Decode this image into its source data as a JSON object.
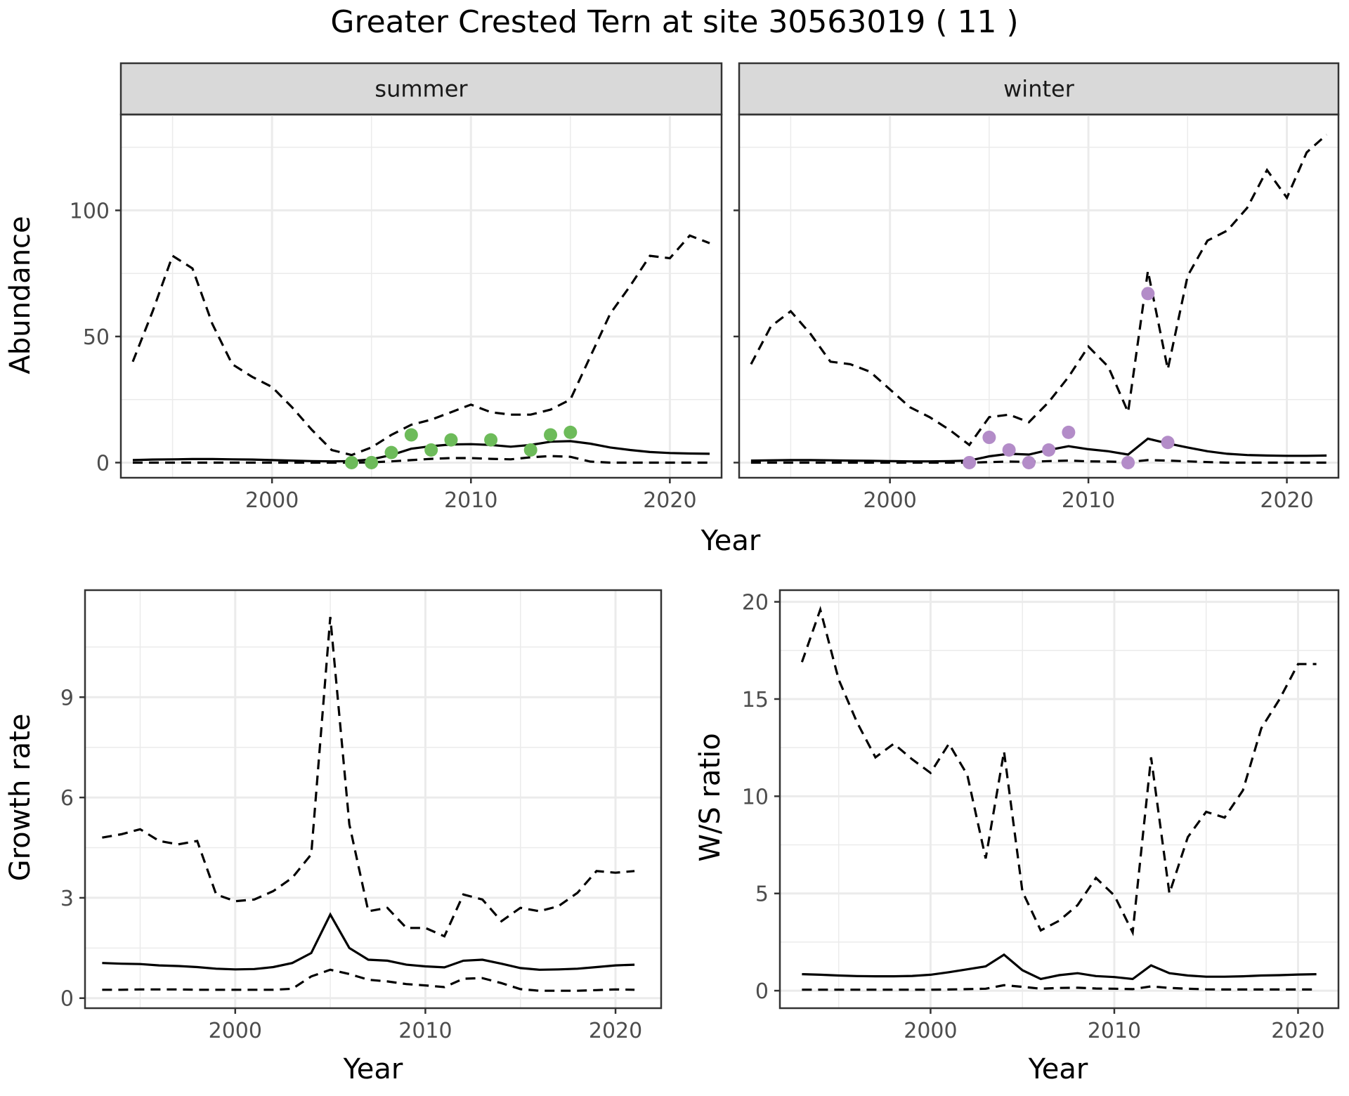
{
  "figure": {
    "title": "Greater Crested Tern at site 30563019 ( 11 )"
  },
  "colors": {
    "summer_points": "#6dbb5a",
    "winter_points": "#b38cc8",
    "line": "#000000",
    "strip_fill": "#d9d9d9",
    "grid": "#ebebeb"
  },
  "chart_data": [
    {
      "type": "line",
      "panel": "abundance",
      "ylabel": "Abundance",
      "xlabel": "Year",
      "xlim": [
        1992.4,
        2022.6
      ],
      "ylim": [
        -6,
        138
      ],
      "x_ticks": [
        2000,
        2010,
        2020
      ],
      "y_ticks": [
        0,
        50,
        100
      ],
      "grid": true,
      "facets": [
        {
          "strip": "summer",
          "point_color": "#6dbb5a",
          "estimate": {
            "x": [
              1993,
              1994,
              1995,
              1996,
              1997,
              1998,
              1999,
              2000,
              2001,
              2002,
              2003,
              2004,
              2005,
              2006,
              2007,
              2008,
              2009,
              2010,
              2011,
              2012,
              2013,
              2014,
              2015,
              2016,
              2017,
              2018,
              2019,
              2020,
              2021,
              2022
            ],
            "y": [
              1,
              1.2,
              1.3,
              1.4,
              1.4,
              1.3,
              1.2,
              1,
              0.8,
              0.6,
              0.5,
              0.6,
              1.3,
              3,
              5.5,
              6.5,
              7.2,
              7.3,
              7,
              6.3,
              7,
              8.3,
              8.5,
              7.5,
              6,
              5,
              4.2,
              3.8,
              3.6,
              3.5
            ]
          },
          "upper": {
            "x": [
              1993,
              1994,
              1995,
              1996,
              1997,
              1998,
              1999,
              2000,
              2001,
              2002,
              2003,
              2004,
              2005,
              2006,
              2007,
              2008,
              2009,
              2010,
              2011,
              2012,
              2013,
              2014,
              2015,
              2016,
              2017,
              2018,
              2019,
              2020,
              2021,
              2022
            ],
            "y": [
              40,
              60,
              82,
              77,
              55,
              39,
              34,
              30,
              22,
              13,
              5,
              3,
              6,
              11,
              15,
              17,
              20,
              23,
              20,
              19,
              19,
              21,
              25,
              42,
              59,
              70,
              82,
              81,
              90,
              87
            ]
          },
          "lower": {
            "x": [
              1993,
              1994,
              1995,
              1996,
              1997,
              1998,
              1999,
              2000,
              2001,
              2002,
              2003,
              2004,
              2005,
              2006,
              2007,
              2008,
              2009,
              2010,
              2011,
              2012,
              2013,
              2014,
              2015,
              2016,
              2017,
              2018,
              2019,
              2020,
              2021,
              2022
            ],
            "y": [
              0,
              0,
              0,
              0,
              0,
              0,
              0,
              0,
              0,
              0,
              0,
              0,
              0.1,
              0.5,
              1,
              1.5,
              1.8,
              1.8,
              1.5,
              1.3,
              2.1,
              2.6,
              2.3,
              0.4,
              0,
              0,
              0,
              0,
              0,
              0
            ]
          },
          "observations": {
            "x": [
              2004,
              2005,
              2006,
              2007,
              2008,
              2009,
              2011,
              2013,
              2014,
              2015
            ],
            "y": [
              0,
              0,
              4,
              11,
              5,
              9,
              9,
              5,
              11,
              12
            ]
          }
        },
        {
          "strip": "winter",
          "point_color": "#b38cc8",
          "estimate": {
            "x": [
              1993,
              1994,
              1995,
              1996,
              1997,
              1998,
              1999,
              2000,
              2001,
              2002,
              2003,
              2004,
              2005,
              2006,
              2007,
              2008,
              2009,
              2010,
              2011,
              2012,
              2013,
              2014,
              2015,
              2016,
              2017,
              2018,
              2019,
              2020,
              2021,
              2022
            ],
            "y": [
              0.8,
              0.9,
              1,
              1,
              0.9,
              0.8,
              0.7,
              0.6,
              0.5,
              0.5,
              0.6,
              0.8,
              2.5,
              3.5,
              3.2,
              5,
              6.5,
              5.3,
              4.5,
              3.2,
              9.5,
              7.6,
              6,
              4.5,
              3.5,
              3,
              2.8,
              2.7,
              2.7,
              2.8
            ]
          },
          "upper": {
            "x": [
              1993,
              1994,
              1995,
              1996,
              1997,
              1998,
              1999,
              2000,
              2001,
              2002,
              2003,
              2004,
              2005,
              2006,
              2007,
              2008,
              2009,
              2010,
              2011,
              2012,
              2013,
              2014,
              2015,
              2016,
              2017,
              2018,
              2019,
              2020,
              2021,
              2022
            ],
            "y": [
              39,
              54,
              60,
              51,
              40,
              39,
              36,
              29,
              22,
              18,
              13,
              7,
              18,
              19,
              16,
              24,
              34,
              46,
              38,
              20,
              76,
              37,
              74,
              88,
              92,
              101,
              116,
              105,
              123,
              130
            ]
          },
          "lower": {
            "x": [
              1993,
              1994,
              1995,
              1996,
              1997,
              1998,
              1999,
              2000,
              2001,
              2002,
              2003,
              2004,
              2005,
              2006,
              2007,
              2008,
              2009,
              2010,
              2011,
              2012,
              2013,
              2014,
              2015,
              2016,
              2017,
              2018,
              2019,
              2020,
              2021,
              2022
            ],
            "y": [
              0,
              0,
              0,
              0,
              0,
              0,
              0,
              0,
              0,
              0,
              0,
              0,
              0.2,
              0.4,
              0.3,
              0.6,
              0.8,
              0.5,
              0.4,
              0.2,
              1,
              0.8,
              0.5,
              0.2,
              0,
              0,
              0,
              0,
              0,
              0
            ]
          },
          "observations": {
            "x": [
              2004,
              2005,
              2006,
              2007,
              2008,
              2009,
              2012,
              2013,
              2014
            ],
            "y": [
              0,
              10,
              5,
              0,
              5,
              12,
              0,
              67,
              8
            ]
          }
        }
      ]
    },
    {
      "type": "line",
      "panel": "growth",
      "ylabel": "Growth rate",
      "xlabel": "Year",
      "xlim": [
        1992.1,
        2022.4
      ],
      "ylim": [
        -0.3,
        12.2
      ],
      "x_ticks": [
        2000,
        2010,
        2020
      ],
      "y_ticks": [
        0,
        3,
        6,
        9
      ],
      "grid": true,
      "estimate": {
        "x": [
          1993,
          1994,
          1995,
          1996,
          1997,
          1998,
          1999,
          2000,
          2001,
          2002,
          2003,
          2004,
          2005,
          2006,
          2007,
          2008,
          2009,
          2010,
          2011,
          2012,
          2013,
          2014,
          2015,
          2016,
          2017,
          2018,
          2019,
          2020,
          2021
        ],
        "y": [
          1.05,
          1.03,
          1.02,
          0.98,
          0.96,
          0.93,
          0.88,
          0.86,
          0.87,
          0.93,
          1.05,
          1.35,
          2.5,
          1.5,
          1.15,
          1.12,
          1,
          0.95,
          0.92,
          1.12,
          1.15,
          1.03,
          0.9,
          0.85,
          0.86,
          0.88,
          0.93,
          0.98,
          1
        ]
      },
      "upper": {
        "x": [
          1993,
          1994,
          1995,
          1996,
          1997,
          1998,
          1999,
          2000,
          2001,
          2002,
          2003,
          2004,
          2005,
          2006,
          2007,
          2008,
          2009,
          2010,
          2011,
          2012,
          2013,
          2014,
          2015,
          2016,
          2017,
          2018,
          2019,
          2020,
          2021
        ],
        "y": [
          4.8,
          4.9,
          5.05,
          4.7,
          4.6,
          4.7,
          3.1,
          2.9,
          2.95,
          3.2,
          3.6,
          4.3,
          11.4,
          5.2,
          2.6,
          2.7,
          2.1,
          2.1,
          1.85,
          3.1,
          2.95,
          2.3,
          2.7,
          2.6,
          2.75,
          3.15,
          3.8,
          3.75,
          3.8
        ]
      },
      "lower": {
        "x": [
          1993,
          1994,
          1995,
          1996,
          1997,
          1998,
          1999,
          2000,
          2001,
          2002,
          2003,
          2004,
          2005,
          2006,
          2007,
          2008,
          2009,
          2010,
          2011,
          2012,
          2013,
          2014,
          2015,
          2016,
          2017,
          2018,
          2019,
          2020,
          2021
        ],
        "y": [
          0.25,
          0.25,
          0.26,
          0.26,
          0.26,
          0.25,
          0.25,
          0.25,
          0.25,
          0.25,
          0.28,
          0.65,
          0.85,
          0.72,
          0.55,
          0.5,
          0.42,
          0.38,
          0.33,
          0.58,
          0.6,
          0.45,
          0.27,
          0.22,
          0.22,
          0.22,
          0.24,
          0.26,
          0.25
        ]
      }
    },
    {
      "type": "line",
      "panel": "ws_ratio",
      "ylabel": "W/S ratio",
      "xlabel": "Year",
      "xlim": [
        1991.8,
        2022.2
      ],
      "ylim": [
        -0.9,
        20.6
      ],
      "x_ticks": [
        2000,
        2010,
        2020
      ],
      "y_ticks": [
        0,
        5,
        10,
        15,
        20
      ],
      "grid": true,
      "estimate": {
        "x": [
          1993,
          1994,
          1995,
          1996,
          1997,
          1998,
          1999,
          2000,
          2001,
          2002,
          2003,
          2004,
          2005,
          2006,
          2007,
          2008,
          2009,
          2010,
          2011,
          2012,
          2013,
          2014,
          2015,
          2016,
          2017,
          2018,
          2019,
          2020,
          2021
        ],
        "y": [
          0.85,
          0.82,
          0.78,
          0.75,
          0.74,
          0.74,
          0.76,
          0.82,
          0.95,
          1.1,
          1.25,
          1.85,
          1.05,
          0.6,
          0.8,
          0.9,
          0.75,
          0.7,
          0.6,
          1.3,
          0.9,
          0.78,
          0.72,
          0.72,
          0.74,
          0.78,
          0.8,
          0.83,
          0.85
        ]
      },
      "upper": {
        "x": [
          1993,
          1994,
          1995,
          1996,
          1997,
          1998,
          1999,
          2000,
          2001,
          2002,
          2003,
          2004,
          2005,
          2006,
          2007,
          2008,
          2009,
          2010,
          2011,
          2012,
          2013,
          2014,
          2015,
          2016,
          2017,
          2018,
          2019,
          2020,
          2021
        ],
        "y": [
          16.9,
          19.6,
          16,
          13.8,
          12,
          12.7,
          11.9,
          11.2,
          12.7,
          11.1,
          6.8,
          12.3,
          5.1,
          3.1,
          3.6,
          4.4,
          5.8,
          4.9,
          3,
          12,
          5,
          7.9,
          9.2,
          8.9,
          10.3,
          13.5,
          15,
          16.8,
          16.8
        ]
      },
      "lower": {
        "x": [
          1993,
          1994,
          1995,
          1996,
          1997,
          1998,
          1999,
          2000,
          2001,
          2002,
          2003,
          2004,
          2005,
          2006,
          2007,
          2008,
          2009,
          2010,
          2011,
          2012,
          2013,
          2014,
          2015,
          2016,
          2017,
          2018,
          2019,
          2020,
          2021
        ],
        "y": [
          0.05,
          0.05,
          0.05,
          0.05,
          0.05,
          0.05,
          0.05,
          0.05,
          0.06,
          0.08,
          0.1,
          0.28,
          0.2,
          0.1,
          0.14,
          0.15,
          0.11,
          0.1,
          0.08,
          0.22,
          0.14,
          0.1,
          0.07,
          0.06,
          0.06,
          0.06,
          0.06,
          0.06,
          0.06
        ]
      }
    }
  ]
}
